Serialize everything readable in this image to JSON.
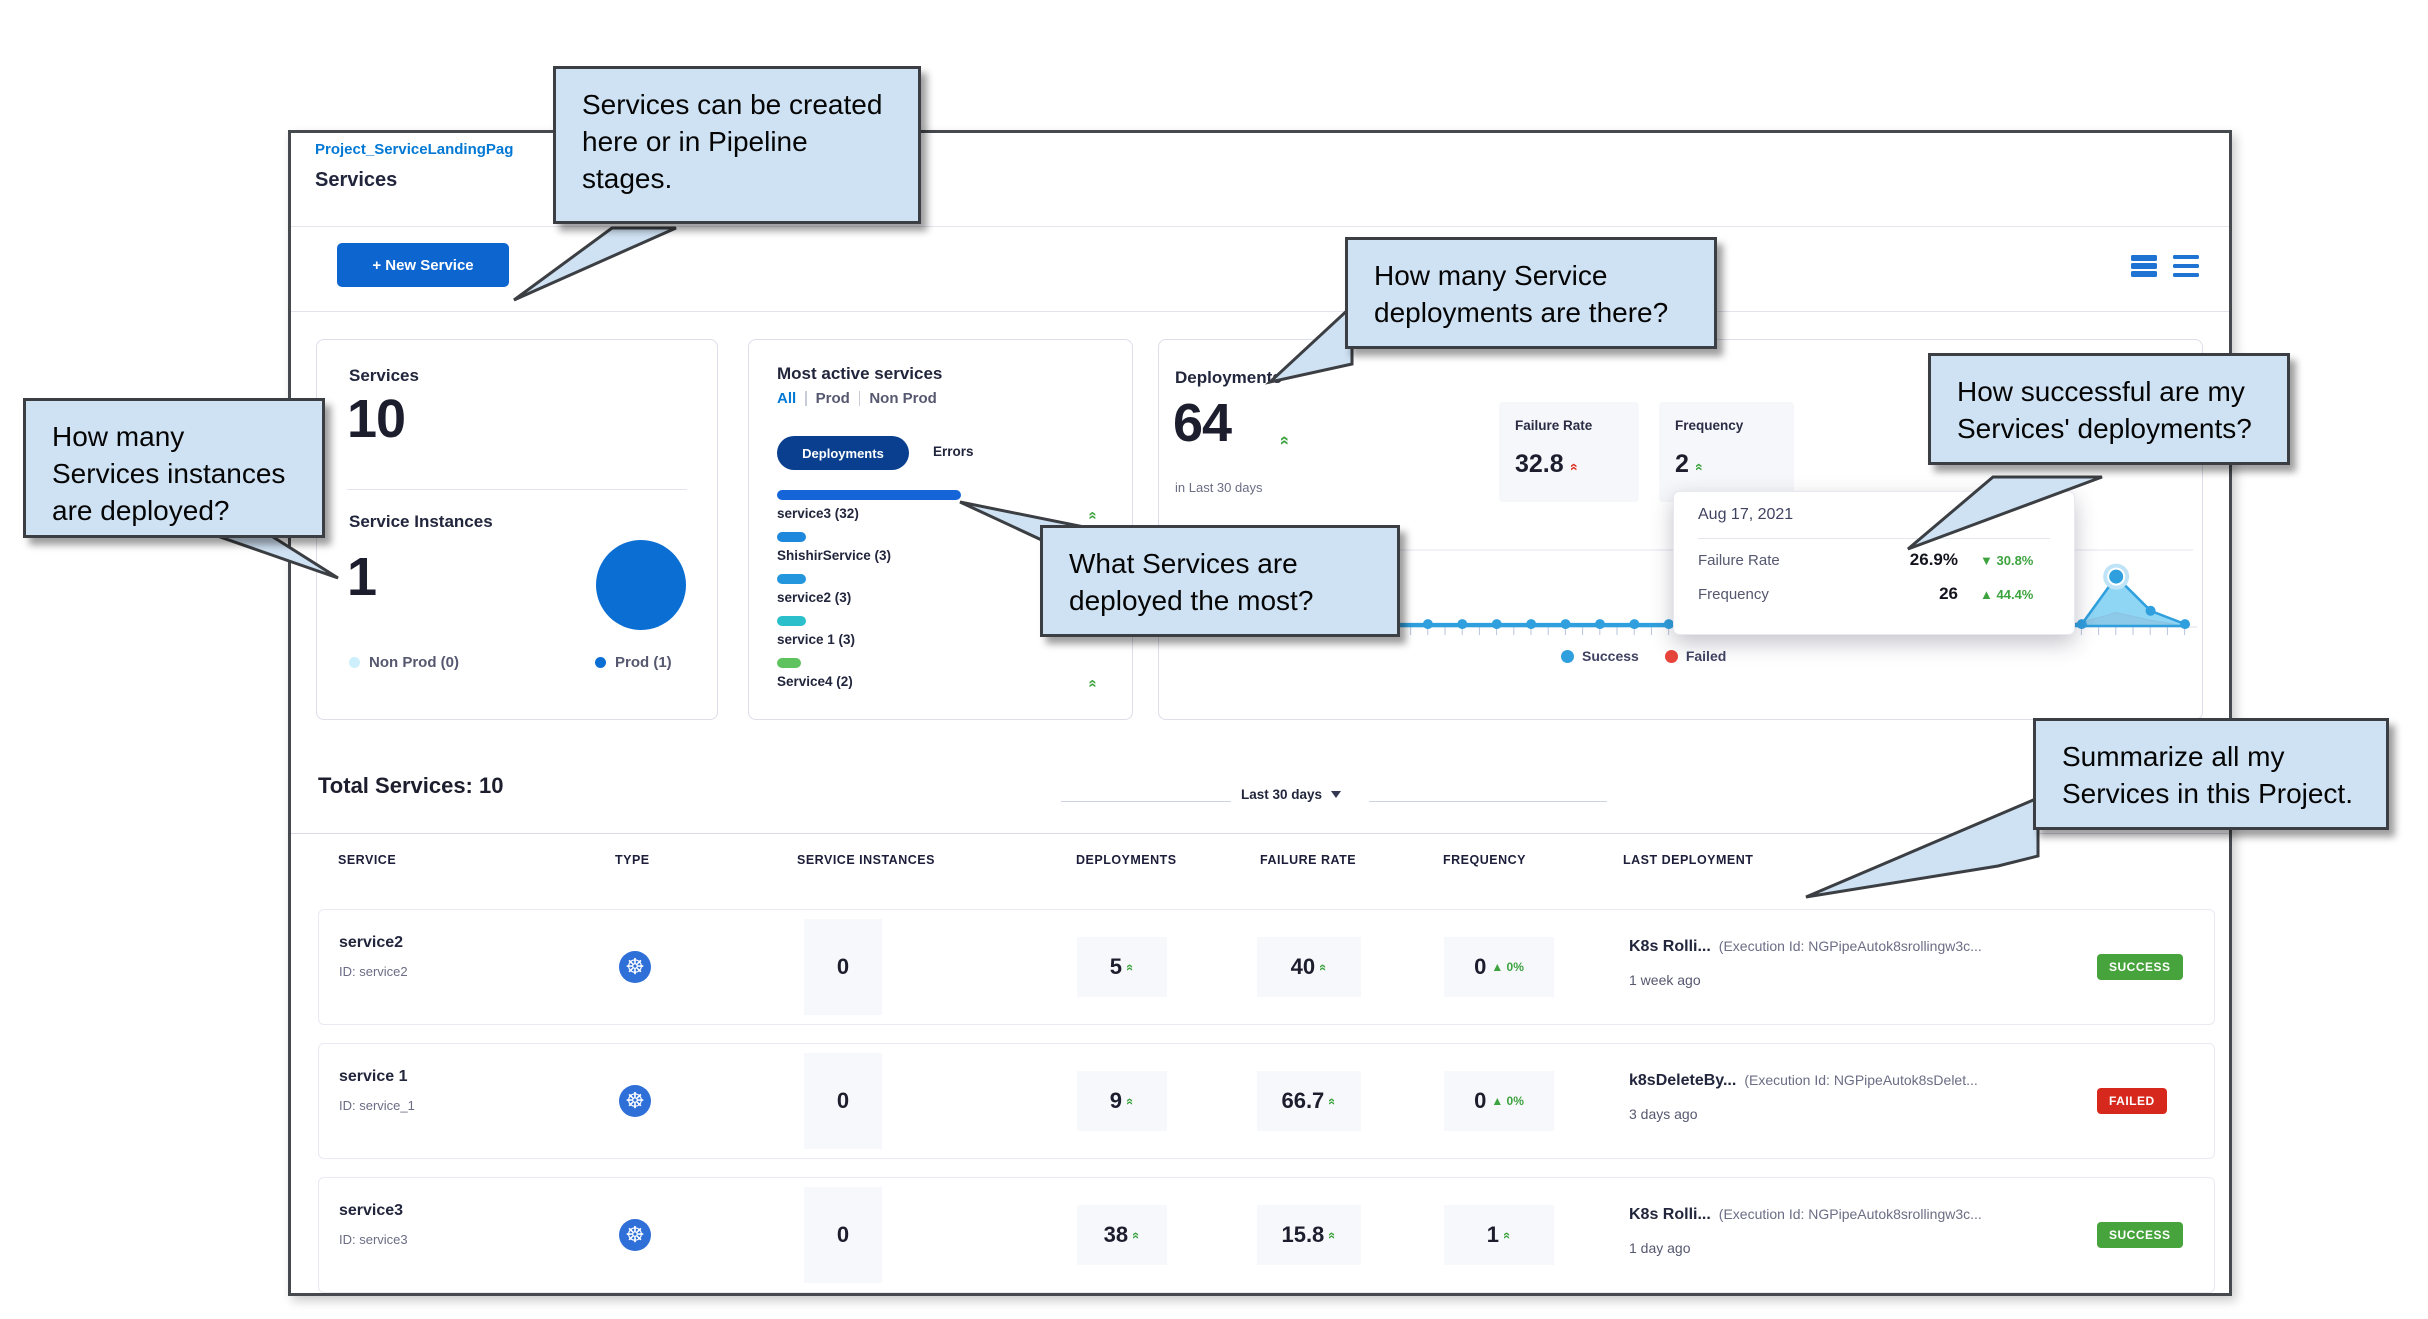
{
  "header": {
    "breadcrumb": "Project_ServiceLandingPag",
    "title": "Services",
    "new_service_button": "+ New Service"
  },
  "services_card": {
    "services_label": "Services",
    "services_count": "10",
    "instances_label": "Service Instances",
    "instances_count": "1",
    "legend": [
      {
        "label": "Non Prod (0)",
        "color": "#cdeffb"
      },
      {
        "label": "Prod (1)",
        "color": "#0b6ed3"
      }
    ]
  },
  "most_active_card": {
    "title": "Most active services",
    "filters": [
      "All",
      "Prod",
      "Non Prod"
    ],
    "active_filter": "All",
    "toggle_active": "Deployments",
    "toggle_inactive": "Errors",
    "items": [
      {
        "label": "service3 (32)",
        "value": 32,
        "color": "#1565d8",
        "trend_up": true
      },
      {
        "label": "ShishirService (3)",
        "value": 3,
        "color": "#1e88dd",
        "trend_up": false
      },
      {
        "label": "service2 (3)",
        "value": 3,
        "color": "#2496dd",
        "trend_up": false
      },
      {
        "label": "service 1 (3)",
        "value": 3,
        "color": "#2abfca",
        "trend_up": false
      },
      {
        "label": "Service4 (2)",
        "value": 2,
        "color": "#5ec35f",
        "trend_up": true
      }
    ]
  },
  "deployments_card": {
    "title": "Deployments",
    "count": "64",
    "period": "in Last 30 days",
    "failure_rate_label": "Failure Rate",
    "failure_rate": "32.8",
    "frequency_label": "Frequency",
    "frequency": "2",
    "y_axis_tick": "40",
    "legend": {
      "success": "Success",
      "failed": "Failed"
    }
  },
  "chart_tooltip": {
    "date": "Aug 17, 2021",
    "rows": [
      {
        "label": "Failure Rate",
        "value": "26.9%",
        "delta_arrow": "▼",
        "delta": "30.8%"
      },
      {
        "label": "Frequency",
        "value": "26",
        "delta_arrow": "▲",
        "delta": "44.4%"
      }
    ]
  },
  "chart_data": [
    {
      "type": "pie",
      "title": "Service Instances",
      "slices": [
        {
          "label": "Non Prod",
          "value": 0,
          "color": "#cdeffb"
        },
        {
          "label": "Prod",
          "value": 1,
          "color": "#0b6ed3"
        }
      ]
    },
    {
      "type": "bar",
      "title": "Most active services (Deployments)",
      "categories": [
        "service3",
        "ShishirService",
        "service2",
        "service 1",
        "Service4"
      ],
      "values": [
        32,
        3,
        3,
        3,
        2
      ]
    },
    {
      "type": "area",
      "title": "Deployments in Last 30 days",
      "ylim": [
        0,
        40
      ],
      "y_gridline": 40,
      "legend_position": "bottom",
      "series": [
        {
          "name": "Success",
          "color": "#2f9fdd",
          "values": [
            1,
            1,
            1,
            1,
            1,
            1,
            1,
            1,
            1,
            1,
            1,
            1,
            1,
            1,
            1,
            1,
            1,
            1,
            1,
            1,
            1,
            1,
            1,
            1,
            1,
            1,
            1,
            26,
            8,
            1
          ]
        },
        {
          "name": "Failed",
          "color": "#e8453c",
          "values": [
            0,
            0,
            0,
            0,
            0,
            0,
            0,
            0,
            0,
            0,
            0,
            0,
            0,
            0,
            0,
            0,
            0,
            1,
            1,
            0,
            0,
            0,
            0,
            0,
            0,
            0,
            2,
            7,
            3,
            0
          ]
        }
      ],
      "highlighted_point": {
        "date": "Aug 17, 2021",
        "frequency": 26,
        "failure_rate": "26.9%"
      }
    }
  ],
  "table": {
    "total_label": "Total Services: 10",
    "period_filter": "Last 30 days",
    "columns": [
      "SERVICE",
      "TYPE",
      "SERVICE INSTANCES",
      "DEPLOYMENTS",
      "FAILURE RATE",
      "FREQUENCY",
      "LAST DEPLOYMENT"
    ],
    "rows": [
      {
        "name": "service2",
        "id": "ID: service2",
        "type": "kubernetes",
        "instances": "0",
        "deployments": "5",
        "failure_rate": "40",
        "frequency": "0",
        "frequency_delta": "0%",
        "pipeline": "K8s Rolli...",
        "execution": "(Execution Id: NGPipeAutok8srollingw3c...",
        "time": "1 week ago",
        "status": "SUCCESS"
      },
      {
        "name": "service 1",
        "id": "ID: service_1",
        "type": "kubernetes",
        "instances": "0",
        "deployments": "9",
        "failure_rate": "66.7",
        "frequency": "0",
        "frequency_delta": "0%",
        "pipeline": "k8sDeleteBy...",
        "execution": "(Execution Id: NGPipeAutok8sDelet...",
        "time": "3 days ago",
        "status": "FAILED"
      },
      {
        "name": "service3",
        "id": "ID: service3",
        "type": "kubernetes",
        "instances": "0",
        "deployments": "38",
        "failure_rate": "15.8",
        "frequency": "1",
        "frequency_delta": null,
        "pipeline": "K8s Rolli...",
        "execution": "(Execution Id: NGPipeAutok8srollingw3c...",
        "time": "1 day ago",
        "status": "SUCCESS"
      }
    ]
  },
  "callouts": [
    "Services can be created here or in Pipeline stages.",
    "How many Services instances are deployed?",
    "How many Service deployments are there?",
    "What Services are deployed the most?",
    "How successful are my Services' deployments?",
    "Summarize all my Services in this Project."
  ],
  "colors": {
    "primary_blue": "#0d66d0",
    "link_blue": "#0278d5",
    "navy_pill": "#0a3f8f",
    "success_green": "#47a33c",
    "failed_red": "#d7281d",
    "trend_green": "#3da33f",
    "trend_red": "#df3125",
    "chart_success": "#2f9fdd",
    "chart_failed_fill": "#f7cdd0",
    "callout_bg": "#cfe2f3"
  }
}
